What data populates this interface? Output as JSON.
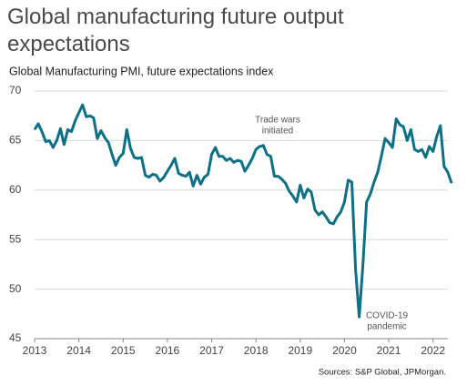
{
  "chart_data": {
    "type": "line",
    "title": "Global manufacturing future output expectations",
    "subtitle": "Global Manufacturing PMI, future expectations index",
    "source": "Sources: S&P Global, JPMorgan.",
    "annotations": [
      [
        "Trade wars",
        "initiated"
      ],
      [
        "COVID-19",
        "pandemic"
      ]
    ],
    "x": [
      2013,
      2013.083,
      2013.167,
      2013.25,
      2013.333,
      2013.417,
      2013.5,
      2013.583,
      2013.667,
      2013.75,
      2013.833,
      2013.917,
      2014,
      2014.083,
      2014.167,
      2014.25,
      2014.333,
      2014.417,
      2014.5,
      2014.583,
      2014.667,
      2014.75,
      2014.833,
      2014.917,
      2015,
      2015.083,
      2015.167,
      2015.25,
      2015.333,
      2015.417,
      2015.5,
      2015.583,
      2015.667,
      2015.75,
      2015.833,
      2015.917,
      2016,
      2016.083,
      2016.167,
      2016.25,
      2016.333,
      2016.417,
      2016.5,
      2016.583,
      2016.667,
      2016.75,
      2016.833,
      2016.917,
      2017,
      2017.083,
      2017.167,
      2017.25,
      2017.333,
      2017.417,
      2017.5,
      2017.583,
      2017.667,
      2017.75,
      2017.833,
      2017.917,
      2018,
      2018.083,
      2018.167,
      2018.25,
      2018.333,
      2018.417,
      2018.5,
      2018.583,
      2018.667,
      2018.75,
      2018.833,
      2018.917,
      2019,
      2019.083,
      2019.167,
      2019.25,
      2019.333,
      2019.417,
      2019.5,
      2019.583,
      2019.667,
      2019.75,
      2019.833,
      2019.917,
      2020,
      2020.083,
      2020.167,
      2020.25,
      2020.333,
      2020.417,
      2020.5,
      2020.583,
      2020.667,
      2020.75,
      2020.833,
      2020.917,
      2021,
      2021.083,
      2021.167,
      2021.25,
      2021.333,
      2021.417,
      2021.5,
      2021.583,
      2021.667,
      2021.75,
      2021.833,
      2021.917,
      2022,
      2022.083,
      2022.167,
      2022.25,
      2022.333,
      2022.417
    ],
    "series": [
      {
        "name": "Global Manufacturing PMI future expectations",
        "color": "#0b7088",
        "values": [
          66.1,
          66.7,
          65.9,
          64.9,
          65.0,
          64.3,
          65.0,
          66.2,
          64.6,
          66.1,
          65.9,
          67.0,
          67.8,
          68.6,
          67.4,
          67.5,
          67.3,
          65.2,
          66.0,
          65.3,
          64.8,
          63.6,
          62.5,
          63.3,
          63.7,
          66.1,
          64.2,
          63.3,
          63.2,
          63.3,
          61.5,
          61.3,
          61.6,
          61.5,
          60.9,
          61.3,
          61.9,
          62.5,
          63.2,
          61.7,
          61.5,
          61.4,
          61.8,
          60.4,
          61.5,
          60.6,
          61.3,
          61.6,
          63.6,
          64.3,
          63.4,
          63.4,
          63.0,
          63.2,
          62.8,
          63.0,
          62.9,
          61.9,
          62.5,
          63.2,
          64.1,
          64.4,
          64.5,
          63.6,
          63.4,
          61.4,
          61.4,
          61.1,
          60.7,
          59.9,
          59.4,
          58.8,
          60.5,
          59.2,
          60.1,
          59.8,
          58.0,
          57.5,
          57.8,
          57.3,
          56.7,
          56.6,
          57.3,
          57.8,
          58.8,
          61.0,
          60.8,
          52.0,
          47.2,
          52.5,
          58.8,
          59.6,
          60.8,
          61.8,
          63.4,
          65.2,
          64.8,
          64.3,
          67.2,
          66.6,
          66.4,
          65.0,
          66.1,
          64.1,
          63.9,
          64.1,
          63.3,
          64.4,
          63.9,
          65.4,
          66.5,
          62.4,
          61.8,
          60.7
        ]
      }
    ],
    "xlim": [
      2013,
      2022.5
    ],
    "xticks": [
      2013,
      2014,
      2015,
      2016,
      2017,
      2018,
      2019,
      2020,
      2021,
      2022
    ],
    "ylim": [
      45,
      70
    ],
    "yticks": [
      45,
      50,
      55,
      60,
      65,
      70
    ],
    "grid": true
  }
}
